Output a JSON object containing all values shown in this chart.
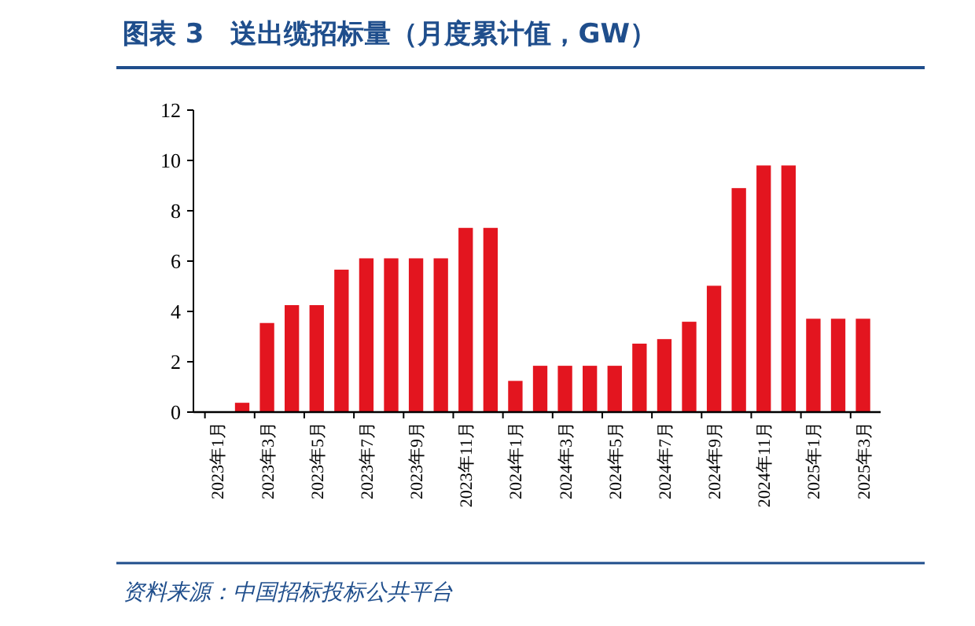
{
  "chart_data": {
    "type": "bar",
    "title": "图表 3　送出缆招标量（月度累计值，GW）",
    "annotations": [
      "资料来源：中国招标投标公共平台"
    ],
    "categories": [
      "2023年1月",
      null,
      "2023年3月",
      null,
      "2023年5月",
      null,
      "2023年7月",
      null,
      "2023年9月",
      null,
      "2023年11月",
      null,
      "2024年1月",
      null,
      "2024年3月",
      null,
      "2024年5月",
      null,
      "2024年7月",
      null,
      "2024年9月",
      null,
      "2024年11月",
      null,
      "2025年1月",
      null,
      "2025年3月"
    ],
    "values": [
      null,
      0.37,
      3.54,
      4.25,
      4.25,
      5.66,
      6.11,
      6.11,
      6.11,
      6.11,
      7.32,
      7.32,
      1.24,
      1.84,
      1.84,
      1.84,
      1.84,
      2.72,
      2.9,
      3.59,
      5.02,
      8.9,
      9.8,
      9.8,
      3.71,
      3.71,
      3.71
    ],
    "color": "#e3151f",
    "ylim": [
      0,
      12
    ],
    "yticks": [
      0,
      2,
      4,
      6,
      8,
      10,
      12
    ],
    "grid": false
  }
}
